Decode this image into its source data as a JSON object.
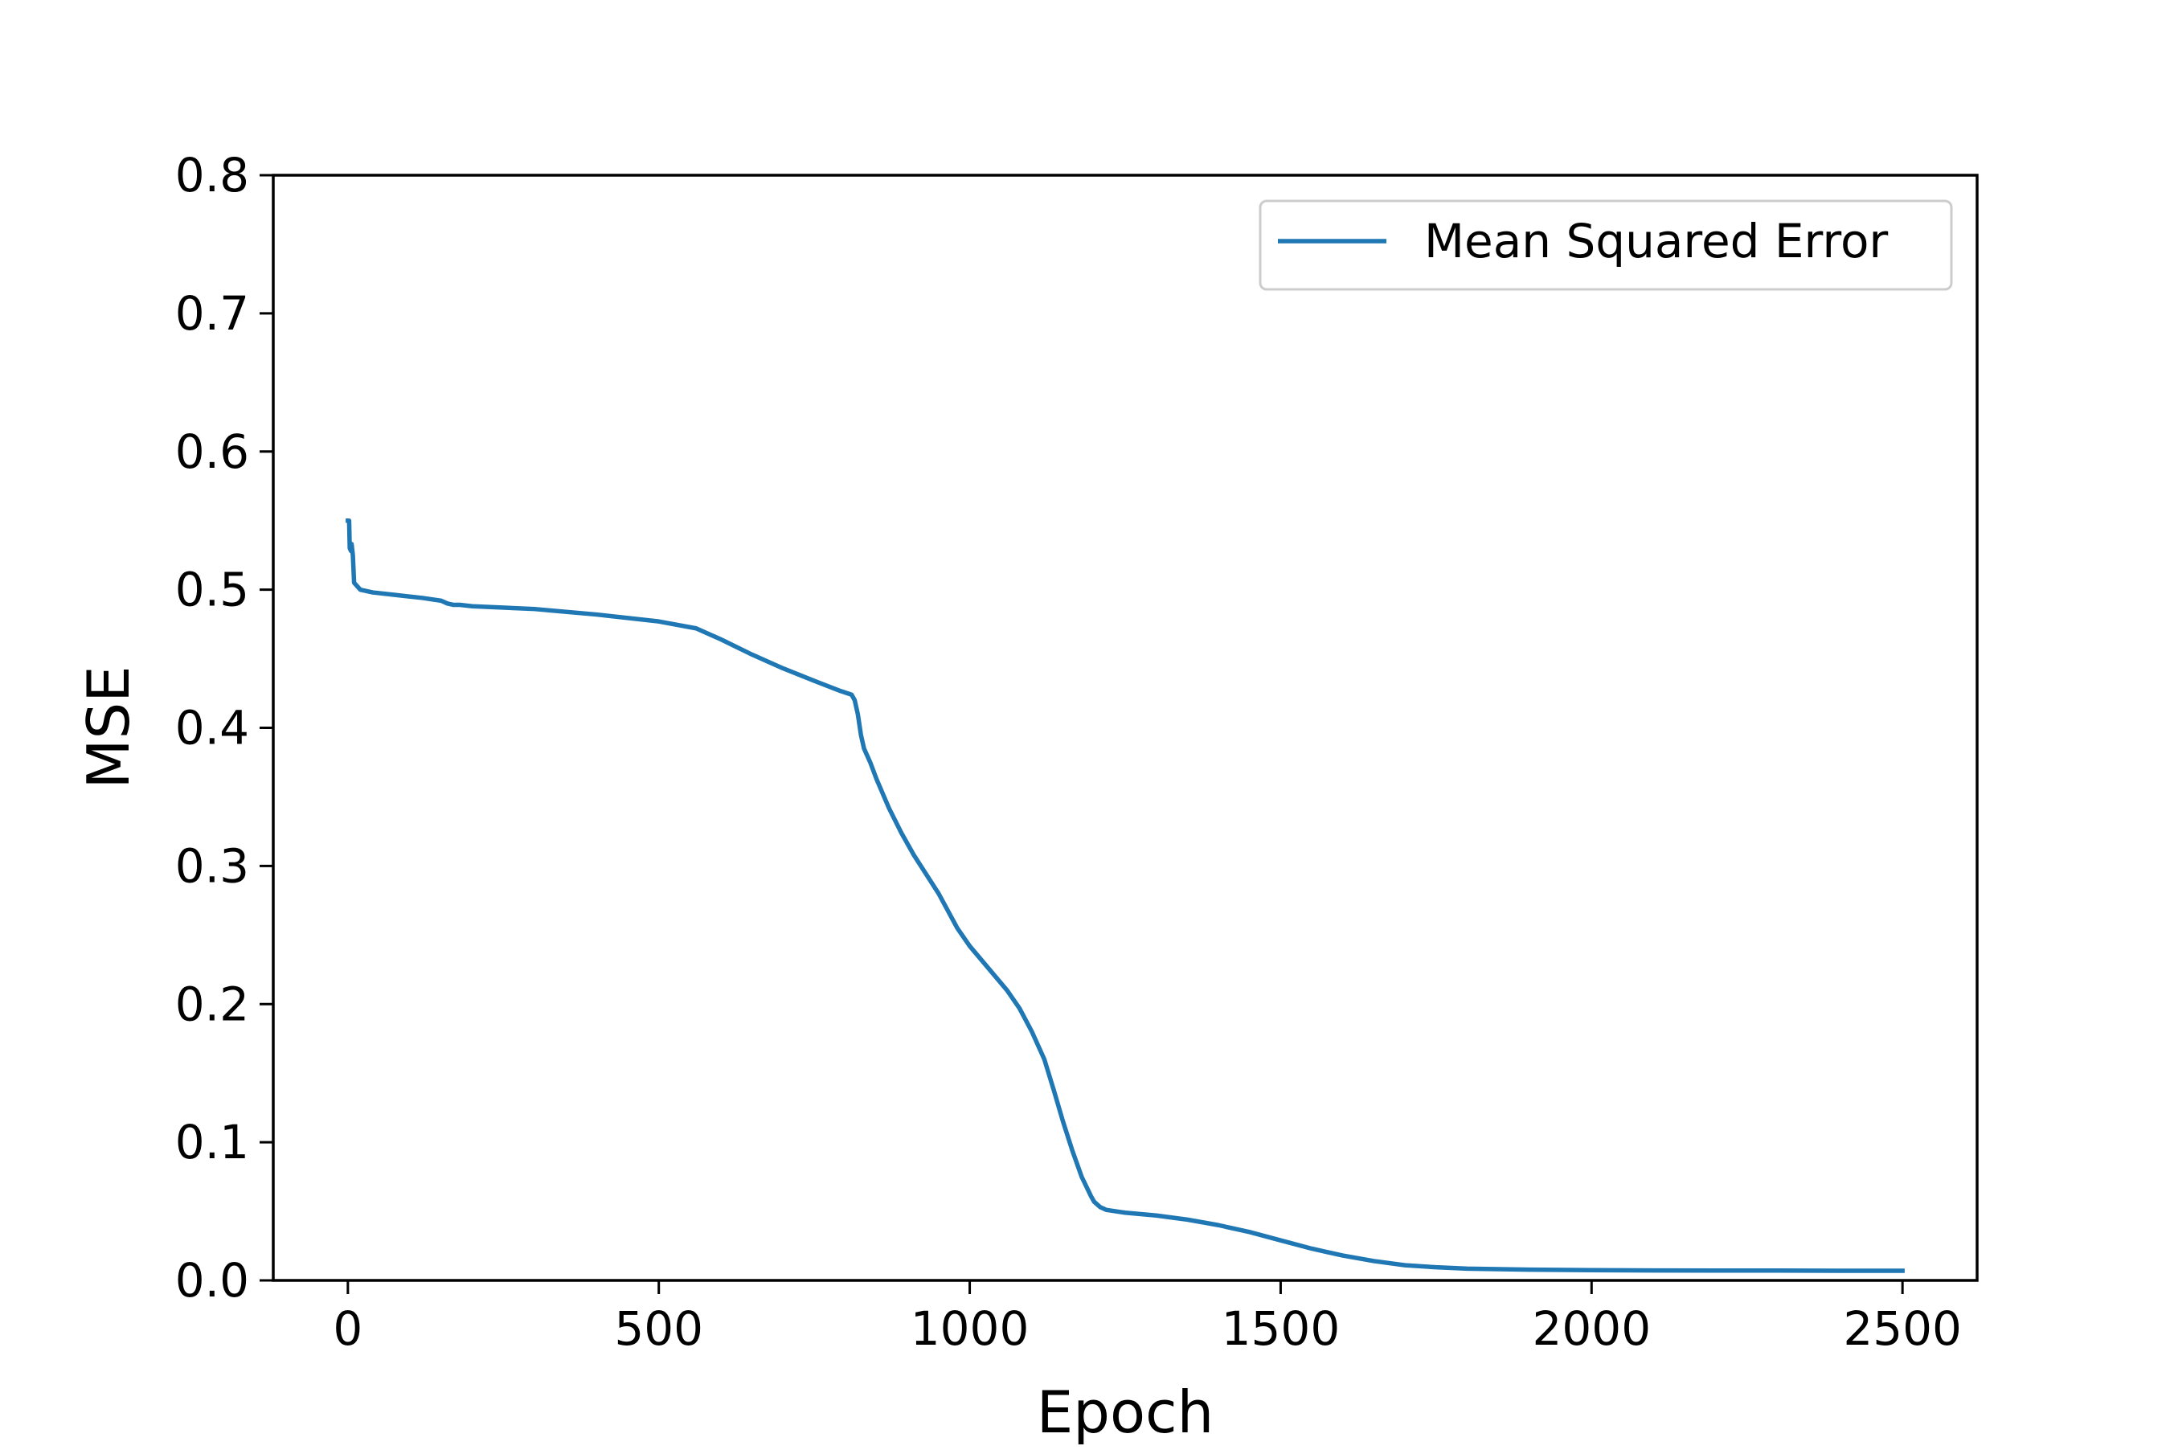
{
  "chart_data": {
    "type": "line",
    "title": "",
    "xlabel": "Epoch",
    "ylabel": "MSE",
    "xlim": [
      -120,
      2620
    ],
    "ylim": [
      0.0,
      0.8
    ],
    "xticks": [
      0,
      500,
      1000,
      1500,
      2000,
      2500
    ],
    "yticks": [
      0.0,
      0.1,
      0.2,
      0.3,
      0.4,
      0.5,
      0.6,
      0.7,
      0.8
    ],
    "xtick_labels": [
      "0",
      "500",
      "1000",
      "1500",
      "2000",
      "2500"
    ],
    "ytick_labels": [
      "0.0",
      "0.1",
      "0.2",
      "0.3",
      "0.4",
      "0.5",
      "0.6",
      "0.7",
      "0.8"
    ],
    "grid": false,
    "legend_position": "upper right",
    "series": [
      {
        "name": "Mean Squared Error",
        "color": "#1f77b4",
        "x": [
          0,
          2,
          3,
          5,
          6,
          8,
          10,
          20,
          40,
          80,
          120,
          150,
          160,
          170,
          180,
          200,
          300,
          400,
          500,
          560,
          600,
          650,
          700,
          750,
          790,
          810,
          815,
          820,
          825,
          830,
          840,
          850,
          870,
          890,
          910,
          950,
          980,
          1000,
          1030,
          1060,
          1080,
          1100,
          1120,
          1135,
          1150,
          1165,
          1180,
          1195,
          1200,
          1210,
          1220,
          1250,
          1300,
          1350,
          1400,
          1450,
          1500,
          1550,
          1600,
          1650,
          1700,
          1750,
          1800,
          1900,
          2000,
          2100,
          2200,
          2300,
          2400,
          2500
        ],
        "y": [
          0.55,
          0.55,
          0.53,
          0.528,
          0.533,
          0.525,
          0.505,
          0.5,
          0.498,
          0.496,
          0.494,
          0.492,
          0.49,
          0.489,
          0.489,
          0.488,
          0.486,
          0.482,
          0.477,
          0.472,
          0.464,
          0.453,
          0.443,
          0.434,
          0.427,
          0.424,
          0.42,
          0.41,
          0.395,
          0.385,
          0.375,
          0.363,
          0.342,
          0.324,
          0.308,
          0.28,
          0.255,
          0.242,
          0.226,
          0.21,
          0.197,
          0.18,
          0.16,
          0.138,
          0.115,
          0.094,
          0.075,
          0.061,
          0.057,
          0.053,
          0.051,
          0.049,
          0.047,
          0.044,
          0.04,
          0.035,
          0.029,
          0.023,
          0.018,
          0.014,
          0.011,
          0.0095,
          0.0085,
          0.0078,
          0.0074,
          0.0072,
          0.0071,
          0.0071,
          0.007,
          0.007
        ]
      }
    ]
  }
}
